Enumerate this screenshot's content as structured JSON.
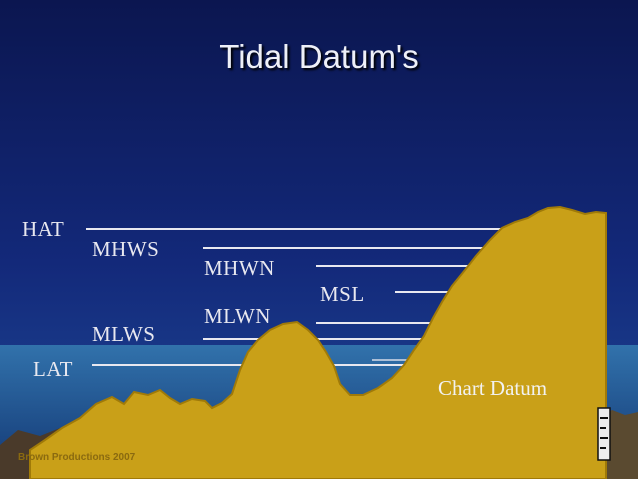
{
  "slide": {
    "title": "Tidal Datum's"
  },
  "datum_lines": [
    {
      "label": "HAT",
      "name": "hat"
    },
    {
      "label": "MHWS",
      "name": "mhws"
    },
    {
      "label": "MHWN",
      "name": "mhwn"
    },
    {
      "label": "MSL",
      "name": "msl"
    },
    {
      "label": "MLWN",
      "name": "mlwn"
    },
    {
      "label": "MLWS",
      "name": "mlws"
    },
    {
      "label": "LAT",
      "name": "lat"
    }
  ],
  "seabed_label": "Chart Datum",
  "credit": "Brown Productions 2007",
  "colors": {
    "background_top": "#0b1650",
    "background_bottom": "#1a3a8a",
    "sea": "#2a6a9a",
    "seabed_fill": "#c9a018",
    "seabed_edge": "#a07a08",
    "line": "#e8e8f0",
    "title_text": "#eef0f8"
  }
}
